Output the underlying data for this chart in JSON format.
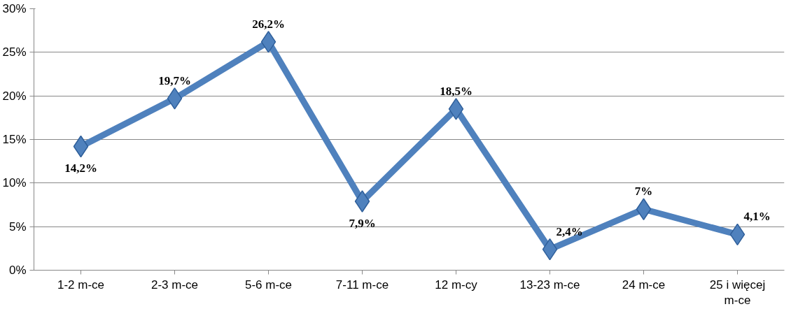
{
  "chart_data": {
    "type": "line",
    "categories": [
      "1-2 m-ce",
      "2-3 m-ce",
      "5-6 m-ce",
      "7-11 m-ce",
      "12 m-cy",
      "13-23 m-ce",
      "24 m-ce",
      "25 i więcej m-ce"
    ],
    "series": [
      {
        "color": "#4f81bd",
        "values": [
          14.2,
          19.7,
          26.2,
          7.9,
          18.5,
          2.4,
          7,
          4.1
        ],
        "value_labels": [
          "14,2%",
          "19,7%",
          "26,2%",
          "7,9%",
          "18,5%",
          "2,4%",
          "7%",
          "4,1%"
        ]
      }
    ],
    "ylim": [
      0,
      30
    ],
    "yticks": [
      {
        "value": 0,
        "label": "0%"
      },
      {
        "value": 5,
        "label": "5%"
      },
      {
        "value": 10,
        "label": "10%"
      },
      {
        "value": 15,
        "label": "15%"
      },
      {
        "value": 20,
        "label": "20%"
      },
      {
        "value": 25,
        "label": "25%"
      },
      {
        "value": 30,
        "label": "30%"
      }
    ],
    "grid": "y",
    "marker": "diamond",
    "line_style": "solid"
  }
}
